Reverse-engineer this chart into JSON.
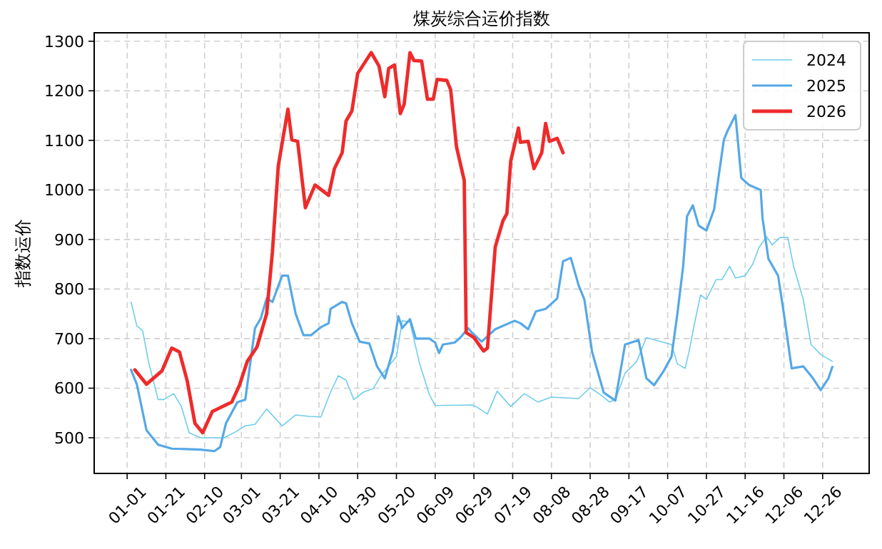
{
  "chart_data": {
    "type": "line",
    "title": "煤炭综合运价指数",
    "ylabel": "指数运价",
    "xlim": [
      "2024-12-15",
      "2026-01-19"
    ],
    "ylim": [
      428,
      1317
    ],
    "xticks": [
      {
        "value": "2025-01-01",
        "label": "01-01"
      },
      {
        "value": "2025-01-21",
        "label": "01-21"
      },
      {
        "value": "2025-02-10",
        "label": "02-10"
      },
      {
        "value": "2025-03-01",
        "label": "03-01"
      },
      {
        "value": "2025-03-21",
        "label": "03-21"
      },
      {
        "value": "2025-04-10",
        "label": "04-10"
      },
      {
        "value": "2025-04-30",
        "label": "04-30"
      },
      {
        "value": "2025-05-20",
        "label": "05-20"
      },
      {
        "value": "2025-06-09",
        "label": "06-09"
      },
      {
        "value": "2025-06-29",
        "label": "06-29"
      },
      {
        "value": "2025-07-19",
        "label": "07-19"
      },
      {
        "value": "2025-08-08",
        "label": "08-08"
      },
      {
        "value": "2025-08-28",
        "label": "08-28"
      },
      {
        "value": "2025-09-17",
        "label": "09-17"
      },
      {
        "value": "2025-10-07",
        "label": "10-07"
      },
      {
        "value": "2025-10-27",
        "label": "10-27"
      },
      {
        "value": "2025-11-16",
        "label": "11-16"
      },
      {
        "value": "2025-12-06",
        "label": "12-06"
      },
      {
        "value": "2025-12-26",
        "label": "12-26"
      }
    ],
    "yticks": [
      500,
      600,
      700,
      800,
      900,
      1000,
      1100,
      1200,
      1300
    ],
    "grid": true,
    "legend": "top right",
    "series": [
      {
        "name": "2024",
        "color": "#6fcdec",
        "x": [
          "2025-01-03",
          "2025-01-06",
          "2025-01-09",
          "2025-01-12",
          "2025-01-17",
          "2025-01-20",
          "2025-01-25",
          "2025-01-29",
          "2025-02-02",
          "2025-02-08",
          "2025-02-20",
          "2025-02-26",
          "2025-03-03",
          "2025-03-08",
          "2025-03-14",
          "2025-03-22",
          "2025-03-29",
          "2025-04-05",
          "2025-04-11",
          "2025-04-16",
          "2025-04-20",
          "2025-04-24",
          "2025-04-28",
          "2025-05-03",
          "2025-05-08",
          "2025-05-12",
          "2025-05-20",
          "2025-05-23",
          "2025-05-27",
          "2025-06-01",
          "2025-06-06",
          "2025-06-09",
          "2025-06-28",
          "2025-06-30",
          "2025-07-06",
          "2025-07-11",
          "2025-07-18",
          "2025-07-25",
          "2025-08-01",
          "2025-08-08",
          "2025-08-22",
          "2025-08-28",
          "2025-09-03",
          "2025-09-07",
          "2025-09-10",
          "2025-09-15",
          "2025-09-21",
          "2025-09-26",
          "2025-10-09",
          "2025-10-12",
          "2025-10-16",
          "2025-10-18",
          "2025-10-21",
          "2025-10-24",
          "2025-10-27",
          "2025-11-01",
          "2025-11-04",
          "2025-11-08",
          "2025-11-11",
          "2025-11-16",
          "2025-11-20",
          "2025-11-23",
          "2025-11-27",
          "2025-11-30",
          "2025-12-04",
          "2025-12-08",
          "2025-12-11",
          "2025-12-16",
          "2025-12-20",
          "2025-12-25",
          "2025-12-31"
        ],
        "values": [
          774,
          726,
          716,
          654,
          577,
          577,
          589,
          563,
          510,
          500,
          500,
          512,
          524,
          527,
          558,
          524,
          546,
          543,
          542,
          592,
          625,
          616,
          577,
          592,
          599,
          625,
          664,
          736,
          733,
          649,
          587,
          565,
          566,
          563,
          548,
          594,
          563,
          589,
          572,
          582,
          579,
          601,
          585,
          572,
          577,
          630,
          654,
          702,
          688,
          649,
          640,
          673,
          733,
          788,
          779,
          819,
          819,
          846,
          822,
          827,
          851,
          883,
          906,
          889,
          904,
          904,
          846,
          779,
          688,
          668,
          654
        ]
      },
      {
        "name": "2025",
        "color": "#55a8e6",
        "x": [
          "2025-01-03",
          "2025-01-06",
          "2025-01-11",
          "2025-01-17",
          "2025-01-24",
          "2025-02-08",
          "2025-02-15",
          "2025-02-18",
          "2025-02-21",
          "2025-02-25",
          "2025-02-27",
          "2025-03-03",
          "2025-03-06",
          "2025-03-08",
          "2025-03-11",
          "2025-03-14",
          "2025-03-17",
          "2025-03-22",
          "2025-03-25",
          "2025-03-29",
          "2025-04-02",
          "2025-04-06",
          "2025-04-11",
          "2025-04-15",
          "2025-04-16",
          "2025-04-22",
          "2025-04-24",
          "2025-04-27",
          "2025-05-01",
          "2025-05-06",
          "2025-05-10",
          "2025-05-14",
          "2025-05-18",
          "2025-05-21",
          "2025-05-23",
          "2025-05-24",
          "2025-05-27",
          "2025-05-30",
          "2025-06-06",
          "2025-06-09",
          "2025-06-11",
          "2025-06-13",
          "2025-06-19",
          "2025-06-22",
          "2025-06-26",
          "2025-06-28",
          "2025-07-03",
          "2025-07-10",
          "2025-07-20",
          "2025-07-23",
          "2025-07-27",
          "2025-07-31",
          "2025-08-05",
          "2025-08-11",
          "2025-08-14",
          "2025-08-18",
          "2025-08-22",
          "2025-08-25",
          "2025-08-29",
          "2025-09-04",
          "2025-09-10",
          "2025-09-15",
          "2025-09-22",
          "2025-09-26",
          "2025-09-30",
          "2025-10-05",
          "2025-10-09",
          "2025-10-12",
          "2025-10-15",
          "2025-10-17",
          "2025-10-20",
          "2025-10-23",
          "2025-10-27",
          "2025-10-31",
          "2025-11-02",
          "2025-11-05",
          "2025-11-07",
          "2025-11-11",
          "2025-11-14",
          "2025-11-18",
          "2025-11-24",
          "2025-11-25",
          "2025-11-28",
          "2025-12-03",
          "2025-12-06",
          "2025-12-10",
          "2025-12-16",
          "2025-12-21",
          "2025-12-25",
          "2025-12-29",
          "2025-12-31"
        ],
        "values": [
          637,
          608,
          515,
          486,
          478,
          476,
          473,
          481,
          529,
          558,
          572,
          577,
          664,
          721,
          741,
          781,
          774,
          827,
          827,
          750,
          707,
          707,
          723,
          731,
          760,
          774,
          771,
          731,
          694,
          690,
          644,
          620,
          673,
          745,
          721,
          726,
          739,
          700,
          700,
          692,
          671,
          688,
          692,
          702,
          721,
          712,
          694,
          719,
          736,
          731,
          719,
          755,
          760,
          781,
          856,
          863,
          808,
          779,
          673,
          591,
          575,
          688,
          697,
          620,
          606,
          635,
          664,
          750,
          846,
          947,
          969,
          928,
          918,
          961,
          1019,
          1101,
          1120,
          1151,
          1024,
          1010,
          1000,
          942,
          861,
          827,
          750,
          640,
          644,
          620,
          596,
          620,
          643
        ]
      },
      {
        "name": "2026",
        "color": "#ee2b2b",
        "x": [
          "2025-01-05",
          "2025-01-11",
          "2025-01-19",
          "2025-01-24",
          "2025-01-28",
          "2025-02-01",
          "2025-02-05",
          "2025-02-09",
          "2025-02-14",
          "2025-02-24",
          "2025-02-28",
          "2025-03-04",
          "2025-03-09",
          "2025-03-14",
          "2025-03-17",
          "2025-03-20",
          "2025-03-25",
          "2025-03-27",
          "2025-03-30",
          "2025-04-03",
          "2025-04-08",
          "2025-04-15",
          "2025-04-18",
          "2025-04-22",
          "2025-04-24",
          "2025-04-27",
          "2025-04-30",
          "2025-05-07",
          "2025-05-11",
          "2025-05-14",
          "2025-05-16",
          "2025-05-19",
          "2025-05-22",
          "2025-05-24",
          "2025-05-27",
          "2025-05-29",
          "2025-06-02",
          "2025-06-05",
          "2025-06-08",
          "2025-06-10",
          "2025-06-15",
          "2025-06-17",
          "2025-06-20",
          "2025-06-24",
          "2025-06-25",
          "2025-06-29",
          "2025-07-04",
          "2025-07-06",
          "2025-07-10",
          "2025-07-14",
          "2025-07-16",
          "2025-07-18",
          "2025-07-22",
          "2025-07-23",
          "2025-07-27",
          "2025-07-30",
          "2025-08-03",
          "2025-08-05",
          "2025-08-07",
          "2025-08-11",
          "2025-08-14"
        ],
        "values": [
          637,
          608,
          635,
          681,
          673,
          615,
          529,
          510,
          553,
          572,
          606,
          654,
          683,
          750,
          875,
          1048,
          1163,
          1101,
          1098,
          964,
          1010,
          989,
          1043,
          1075,
          1139,
          1159,
          1235,
          1277,
          1250,
          1188,
          1245,
          1252,
          1154,
          1173,
          1277,
          1261,
          1260,
          1183,
          1183,
          1223,
          1221,
          1202,
          1087,
          1019,
          712,
          702,
          675,
          681,
          885,
          938,
          952,
          1058,
          1125,
          1096,
          1098,
          1043,
          1075,
          1134,
          1098,
          1104,
          1075
        ]
      }
    ]
  }
}
